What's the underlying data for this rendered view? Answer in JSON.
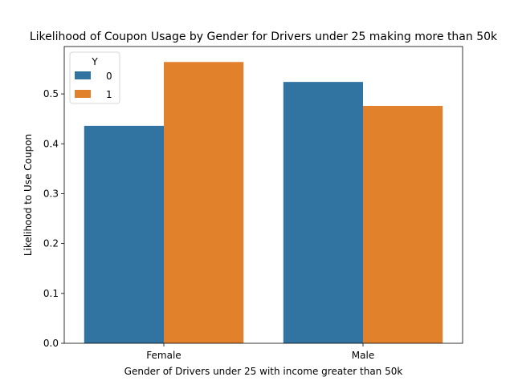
{
  "chart_data": {
    "type": "bar",
    "title": "Likelihood of Coupon Usage by Gender for Drivers under 25 making more than 50k",
    "xlabel": "Gender of Drivers under 25 with income greater than 50k",
    "ylabel": "Likelihood to Use Coupon",
    "categories": [
      "Female",
      "Male"
    ],
    "series": [
      {
        "name": "0",
        "values": [
          0.436,
          0.524
        ],
        "color": "#3274a1"
      },
      {
        "name": "1",
        "values": [
          0.564,
          0.476
        ],
        "color": "#e1812c"
      }
    ],
    "ylim": [
      0,
      0.595
    ],
    "yticks": [
      0.0,
      0.1,
      0.2,
      0.3,
      0.4,
      0.5
    ],
    "ytick_labels": [
      "0.0",
      "0.1",
      "0.2",
      "0.3",
      "0.4",
      "0.5"
    ],
    "grid": false,
    "legend": {
      "title": "Y",
      "placement": "top-left",
      "entries": [
        "0",
        "1"
      ]
    }
  }
}
